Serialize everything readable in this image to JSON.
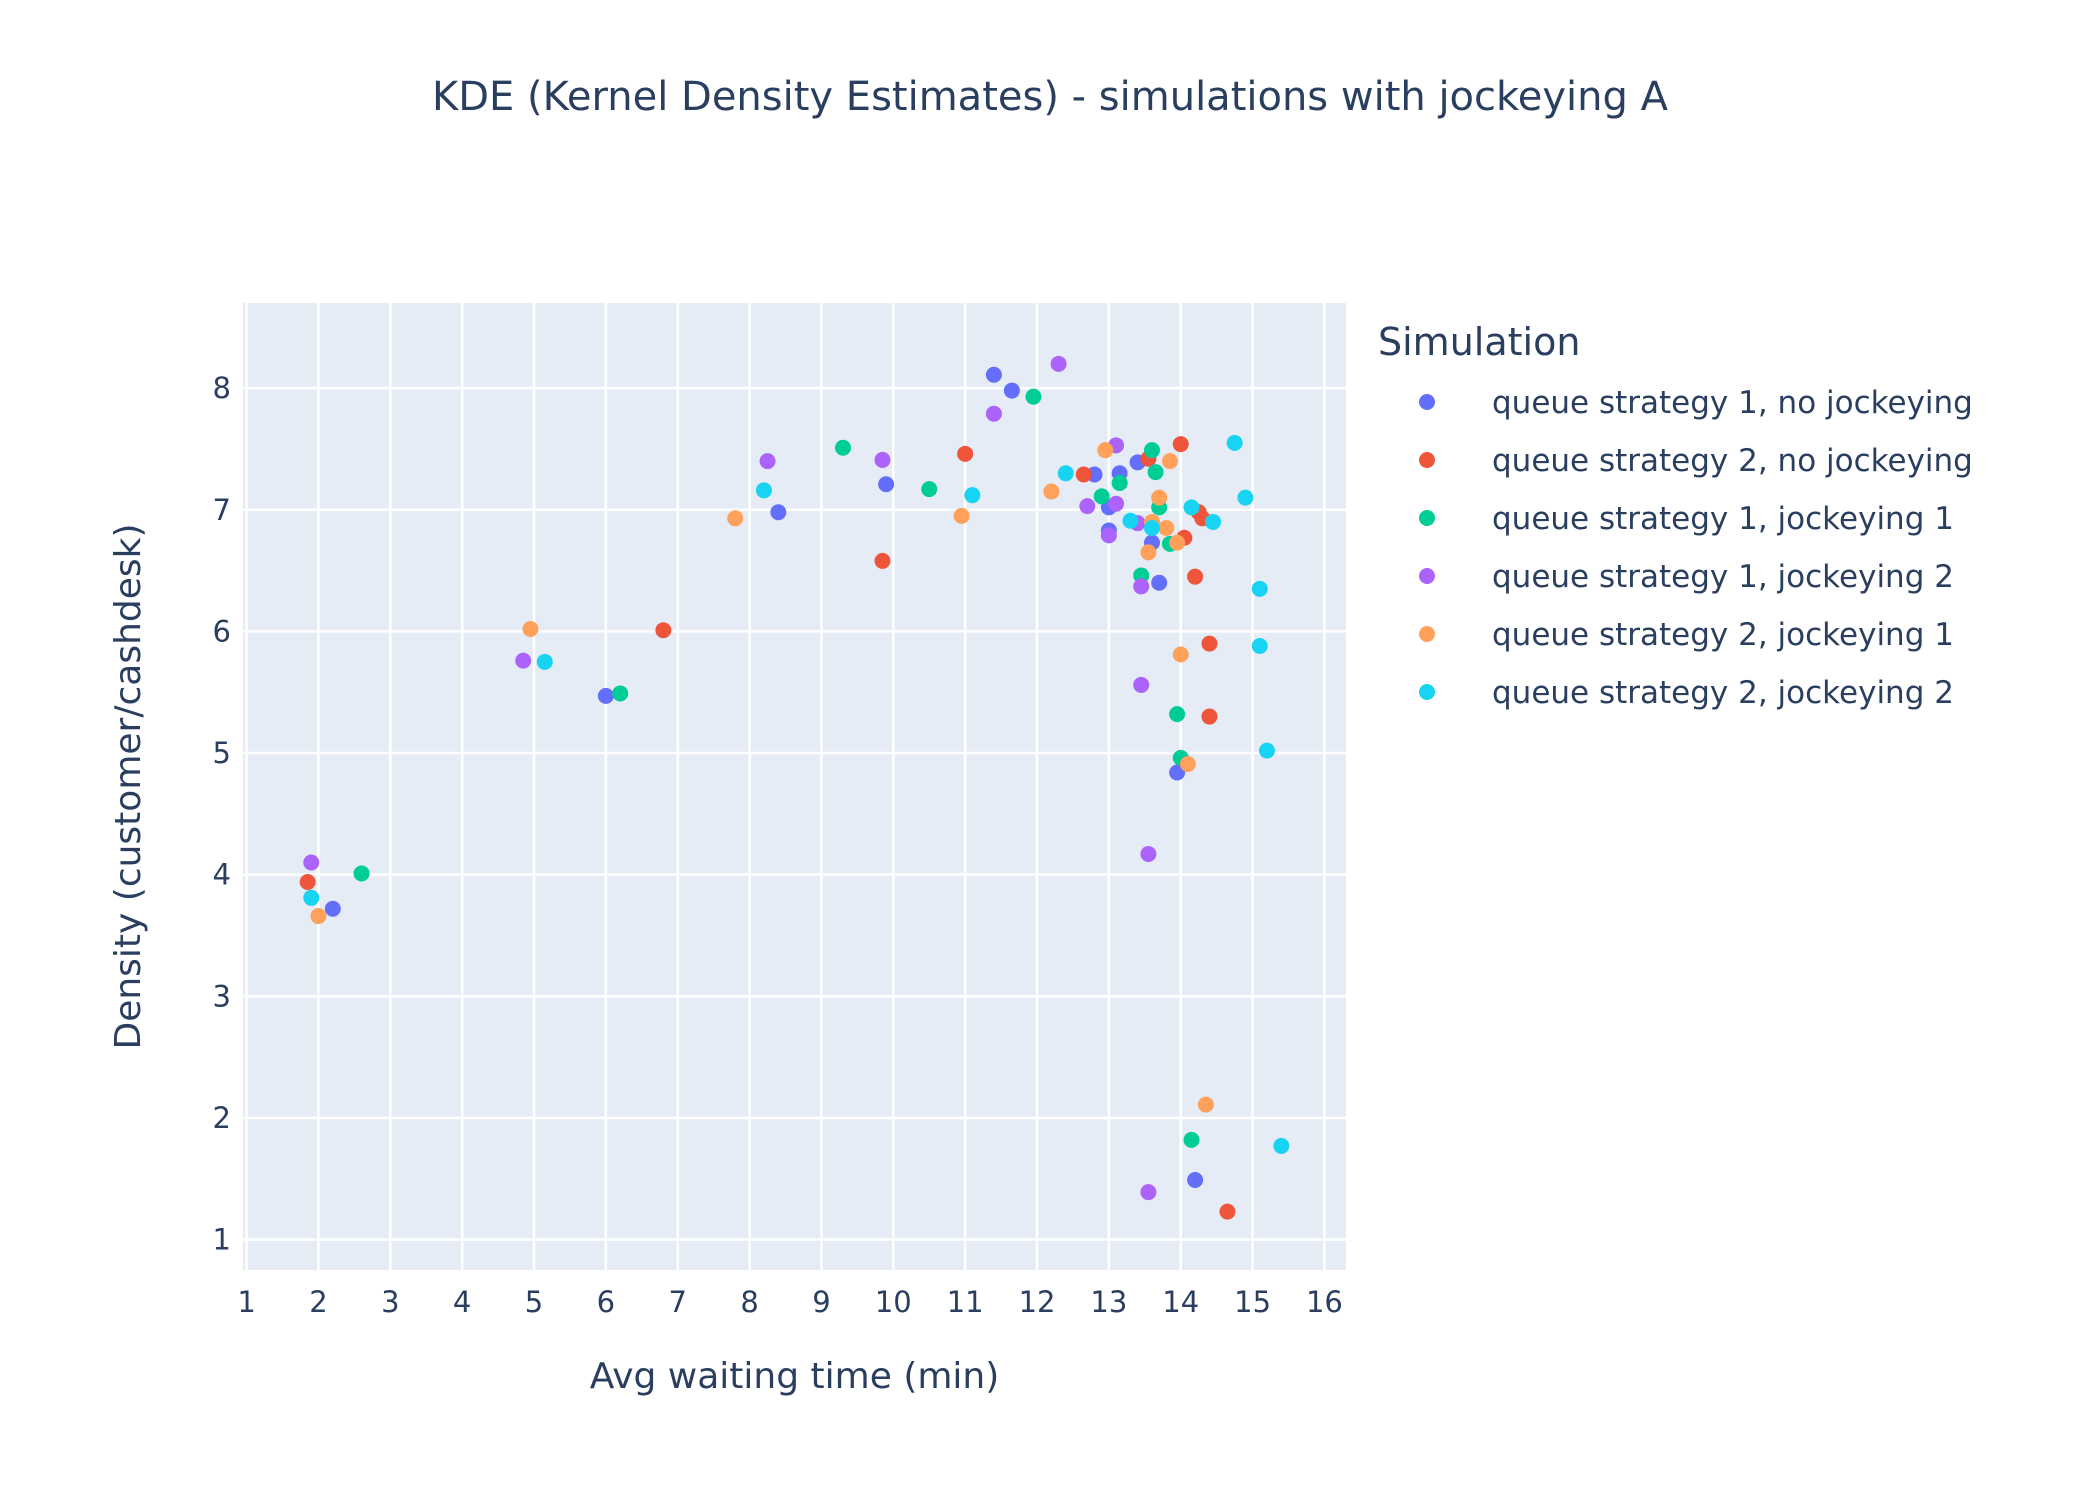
{
  "chart_data": {
    "type": "scatter",
    "title": "KDE (Kernel Density Estimates) - simulations with jockeying A",
    "xlabel": "Avg waiting time (min)",
    "ylabel": "Density (customer/cashdesk)",
    "xlim": [
      0.95,
      16.3
    ],
    "ylim": [
      0.75,
      8.7
    ],
    "x_ticks": [
      1,
      2,
      3,
      4,
      5,
      6,
      7,
      8,
      9,
      10,
      11,
      12,
      13,
      14,
      15,
      16
    ],
    "y_ticks": [
      1,
      2,
      3,
      4,
      5,
      6,
      7,
      8
    ],
    "grid": true,
    "legend_title": "Simulation",
    "legend_position": "right",
    "series": [
      {
        "name": "queue strategy 1, no jockeying",
        "color": "#636efa",
        "points": [
          [
            2.2,
            3.72
          ],
          [
            6.0,
            5.47
          ],
          [
            8.4,
            6.98
          ],
          [
            9.9,
            7.21
          ],
          [
            11.4,
            8.11
          ],
          [
            11.65,
            7.98
          ],
          [
            12.8,
            7.29
          ],
          [
            13.0,
            7.02
          ],
          [
            13.0,
            6.83
          ],
          [
            13.15,
            7.3
          ],
          [
            13.4,
            7.39
          ],
          [
            13.6,
            6.73
          ],
          [
            13.7,
            6.4
          ],
          [
            13.95,
            4.84
          ],
          [
            14.2,
            1.49
          ]
        ]
      },
      {
        "name": "queue strategy 2, no jockeying",
        "color": "#ef553b",
        "points": [
          [
            1.85,
            3.94
          ],
          [
            6.8,
            6.01
          ],
          [
            9.85,
            6.58
          ],
          [
            11.0,
            7.46
          ],
          [
            12.65,
            7.29
          ],
          [
            13.55,
            7.42
          ],
          [
            14.0,
            7.54
          ],
          [
            14.05,
            6.77
          ],
          [
            14.2,
            6.45
          ],
          [
            14.25,
            6.98
          ],
          [
            14.3,
            6.93
          ],
          [
            14.4,
            5.9
          ],
          [
            14.4,
            5.3
          ],
          [
            14.65,
            1.23
          ]
        ]
      },
      {
        "name": "queue strategy 1, jockeying 1",
        "color": "#00cc96",
        "points": [
          [
            2.6,
            4.01
          ],
          [
            6.2,
            5.49
          ],
          [
            9.3,
            7.51
          ],
          [
            10.5,
            7.17
          ],
          [
            11.95,
            7.93
          ],
          [
            12.9,
            7.11
          ],
          [
            13.15,
            7.22
          ],
          [
            13.45,
            6.46
          ],
          [
            13.6,
            7.49
          ],
          [
            13.65,
            7.31
          ],
          [
            13.7,
            7.02
          ],
          [
            13.85,
            6.72
          ],
          [
            13.95,
            5.32
          ],
          [
            14.0,
            4.96
          ],
          [
            14.15,
            1.82
          ]
        ]
      },
      {
        "name": "queue strategy 1, jockeying 2",
        "color": "#ab63fa",
        "points": [
          [
            1.9,
            4.1
          ],
          [
            4.85,
            5.76
          ],
          [
            8.25,
            7.4
          ],
          [
            9.85,
            7.41
          ],
          [
            11.4,
            7.79
          ],
          [
            12.3,
            8.2
          ],
          [
            12.7,
            7.03
          ],
          [
            13.0,
            6.79
          ],
          [
            13.1,
            7.53
          ],
          [
            13.1,
            7.05
          ],
          [
            13.4,
            6.89
          ],
          [
            13.45,
            6.37
          ],
          [
            13.45,
            5.56
          ],
          [
            13.55,
            4.17
          ],
          [
            13.55,
            1.39
          ]
        ]
      },
      {
        "name": "queue strategy 2, jockeying 1",
        "color": "#ffa15a",
        "points": [
          [
            2.0,
            3.66
          ],
          [
            4.95,
            6.02
          ],
          [
            7.8,
            6.93
          ],
          [
            10.95,
            6.95
          ],
          [
            12.2,
            7.15
          ],
          [
            12.95,
            7.49
          ],
          [
            13.55,
            6.65
          ],
          [
            13.6,
            6.9
          ],
          [
            13.7,
            7.1
          ],
          [
            13.8,
            6.85
          ],
          [
            13.85,
            7.4
          ],
          [
            13.95,
            6.73
          ],
          [
            14.0,
            5.81
          ],
          [
            14.1,
            4.91
          ],
          [
            14.35,
            2.11
          ]
        ]
      },
      {
        "name": "queue strategy 2, jockeying 2",
        "color": "#19d3f3",
        "points": [
          [
            1.9,
            3.81
          ],
          [
            5.15,
            5.75
          ],
          [
            8.2,
            7.16
          ],
          [
            11.1,
            7.12
          ],
          [
            12.4,
            7.3
          ],
          [
            13.3,
            6.91
          ],
          [
            13.6,
            6.85
          ],
          [
            14.15,
            7.02
          ],
          [
            14.45,
            6.9
          ],
          [
            14.75,
            7.55
          ],
          [
            14.9,
            7.1
          ],
          [
            15.1,
            6.35
          ],
          [
            15.1,
            5.88
          ],
          [
            15.2,
            5.02
          ],
          [
            15.4,
            1.77
          ]
        ]
      }
    ]
  }
}
